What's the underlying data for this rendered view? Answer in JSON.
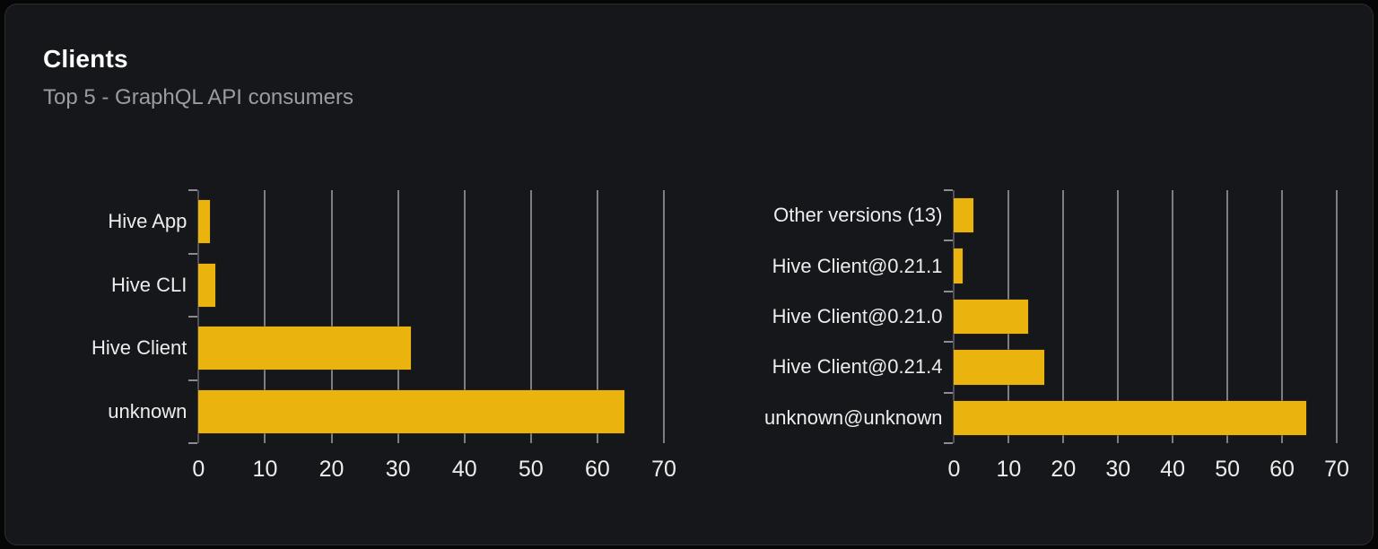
{
  "card": {
    "title": "Clients",
    "subtitle": "Top 5 - GraphQL API consumers"
  },
  "colors": {
    "page_bg": "#060607",
    "card_bg": "#16171b",
    "card_border": "#2b2d32",
    "title": "#fcfcfd",
    "subtitle": "#9b9ca2",
    "label": "#eceded",
    "bar": "#eab30d",
    "grid": "#e4e5e9",
    "axis": "#515257",
    "tick": "#8a8c91"
  },
  "chart_data": [
    {
      "type": "bar",
      "orientation": "horizontal",
      "name": "clients-by-name",
      "categories": [
        "Hive App",
        "Hive CLI",
        "Hive Client",
        "unknown"
      ],
      "values": [
        1.7,
        2.5,
        32,
        64
      ],
      "xlabel": "",
      "ylabel": "",
      "xlim": [
        0,
        70
      ],
      "xticks": [
        0,
        10,
        20,
        30,
        40,
        50,
        60,
        70
      ],
      "grid": true,
      "legend": "none"
    },
    {
      "type": "bar",
      "orientation": "horizontal",
      "name": "clients-by-version",
      "categories": [
        "Other versions (13)",
        "Hive Client@0.21.1",
        "Hive Client@0.21.0",
        "Hive Client@0.21.4",
        "unknown@unknown"
      ],
      "values": [
        3.5,
        1.5,
        13.5,
        16.5,
        64.5
      ],
      "xlabel": "",
      "ylabel": "",
      "xlim": [
        0,
        70
      ],
      "xticks": [
        0,
        10,
        20,
        30,
        40,
        50,
        60,
        70
      ],
      "grid": true,
      "legend": "none"
    }
  ]
}
